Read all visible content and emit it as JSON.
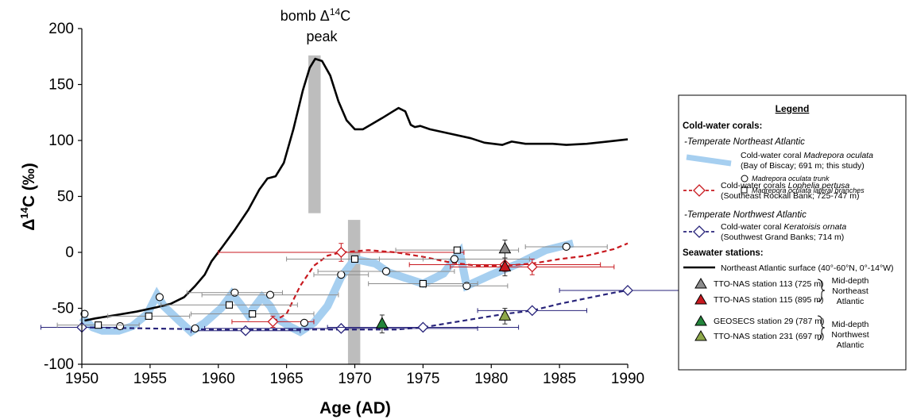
{
  "chart_data": {
    "type": "line",
    "xlabel": "Age (AD)",
    "ylabel": "Δ¹⁴C (‰)",
    "xlim": [
      1950,
      1990
    ],
    "ylim": [
      -100,
      200
    ],
    "xticks": [
      "1950",
      "1955",
      "1960",
      "1965",
      "1970",
      "1975",
      "1980",
      "1985",
      "1990"
    ],
    "yticks": [
      "-100",
      "-50",
      "0",
      "50",
      "100",
      "150",
      "200"
    ],
    "grid": false,
    "legend_placement": "right",
    "annotation": {
      "line1": "bomb Δ",
      "sup": "14",
      "line1_end": "C",
      "line2": "peak"
    },
    "bands": [
      {
        "x0": 1966.6,
        "x1": 1967.5,
        "y0": 35,
        "y1": 176
      },
      {
        "x0": 1969.5,
        "x1": 1970.4,
        "y0": -100,
        "y1": 29
      }
    ],
    "ne_surface": {
      "points": [
        [
          1950.2,
          -61
        ],
        [
          1951,
          -59
        ],
        [
          1952.5,
          -56
        ],
        [
          1954,
          -53
        ],
        [
          1955.5,
          -49
        ],
        [
          1956.5,
          -46
        ],
        [
          1957.5,
          -40
        ],
        [
          1958.3,
          -30
        ],
        [
          1959,
          -20
        ],
        [
          1959.5,
          -8
        ],
        [
          1960.3,
          5
        ],
        [
          1961.2,
          20
        ],
        [
          1962.2,
          38
        ],
        [
          1963,
          56
        ],
        [
          1963.6,
          66
        ],
        [
          1964.2,
          68
        ],
        [
          1964.8,
          80
        ],
        [
          1965.5,
          110
        ],
        [
          1966.2,
          145
        ],
        [
          1966.7,
          165
        ],
        [
          1967.1,
          173
        ],
        [
          1967.6,
          171
        ],
        [
          1968.2,
          158
        ],
        [
          1968.8,
          135
        ],
        [
          1969.4,
          118
        ],
        [
          1970,
          110
        ],
        [
          1970.6,
          110
        ],
        [
          1971.3,
          115
        ],
        [
          1972,
          120
        ],
        [
          1972.8,
          126
        ],
        [
          1973.2,
          129
        ],
        [
          1973.7,
          126
        ],
        [
          1974.1,
          114
        ],
        [
          1974.4,
          112
        ],
        [
          1974.8,
          113
        ],
        [
          1975.5,
          110
        ],
        [
          1977,
          106
        ],
        [
          1978.5,
          102
        ],
        [
          1979.5,
          98
        ],
        [
          1980.8,
          96
        ],
        [
          1981.5,
          99
        ],
        [
          1982.5,
          97
        ],
        [
          1984.5,
          97
        ],
        [
          1985.5,
          96
        ],
        [
          1987,
          97
        ],
        [
          1988.5,
          99
        ],
        [
          1990,
          101
        ]
      ]
    },
    "madrepora_band": {
      "points": [
        [
          1950,
          -58
        ],
        [
          1950.8,
          -67
        ],
        [
          1951.5,
          -70
        ],
        [
          1952.7,
          -70
        ],
        [
          1953.7,
          -66
        ],
        [
          1954.8,
          -55
        ],
        [
          1955.5,
          -38
        ],
        [
          1956,
          -48
        ],
        [
          1957.2,
          -62
        ],
        [
          1958,
          -71
        ],
        [
          1959,
          -63
        ],
        [
          1960.2,
          -50
        ],
        [
          1961,
          -37
        ],
        [
          1961.6,
          -46
        ],
        [
          1962.2,
          -56
        ],
        [
          1963.2,
          -40
        ],
        [
          1963.8,
          -48
        ],
        [
          1964.3,
          -59
        ],
        [
          1965.2,
          -66
        ],
        [
          1966,
          -71
        ],
        [
          1967,
          -63
        ],
        [
          1968,
          -48
        ],
        [
          1969,
          -22
        ],
        [
          1970,
          -6
        ],
        [
          1971.5,
          -10
        ],
        [
          1972.5,
          -18
        ],
        [
          1975,
          -28
        ],
        [
          1976.5,
          -19
        ],
        [
          1977.3,
          -6
        ],
        [
          1977.7,
          0
        ],
        [
          1978.2,
          -30
        ],
        [
          1980,
          -20
        ],
        [
          1982,
          -10
        ],
        [
          1984,
          2
        ],
        [
          1986,
          8
        ]
      ]
    },
    "madrepora_trunk": [
      {
        "x": 1950.2,
        "y": -55,
        "xerr": 0
      },
      {
        "x": 1952.8,
        "y": -66,
        "xerr": 0
      },
      {
        "x": 1955.7,
        "y": -40,
        "xerr": 0
      },
      {
        "x": 1958.3,
        "y": -68,
        "xerr": 0
      },
      {
        "x": 1961.2,
        "y": -36,
        "xerr": 3.5
      },
      {
        "x": 1963.8,
        "y": -38,
        "xerr": 5
      },
      {
        "x": 1966.3,
        "y": -63,
        "xerr": 0
      },
      {
        "x": 1969,
        "y": -20,
        "xerr": 2
      },
      {
        "x": 1972.3,
        "y": -17,
        "xerr": 5
      },
      {
        "x": 1977.3,
        "y": -6,
        "xerr": 5.5
      },
      {
        "x": 1978.2,
        "y": -30,
        "xerr": 3
      },
      {
        "x": 1985.5,
        "y": 5,
        "xerr": 3
      }
    ],
    "madrepora_lateral": [
      {
        "x": 1951.2,
        "y": -65,
        "xerr": 3
      },
      {
        "x": 1954.9,
        "y": -57,
        "xerr": 3
      },
      {
        "x": 1960.8,
        "y": -47,
        "xerr": 5
      },
      {
        "x": 1962.5,
        "y": -55,
        "xerr": 4.5
      },
      {
        "x": 1970,
        "y": -6,
        "xerr": 5
      },
      {
        "x": 1975,
        "y": -28,
        "xerr": 4
      },
      {
        "x": 1977.5,
        "y": 2,
        "xerr": 4.5
      }
    ],
    "lophelia": {
      "points": [
        {
          "x": 1964,
          "y": -62,
          "xerr": 3,
          "yerr": 5
        },
        {
          "x": 1969,
          "y": 0,
          "xerr": 9,
          "yerr": 8
        },
        {
          "x": 1981,
          "y": -11,
          "xerr": 7,
          "yerr": 6
        },
        {
          "x": 1983,
          "y": -13,
          "xerr": 6,
          "yerr": 7
        }
      ],
      "curve": [
        [
          1964,
          -62
        ],
        [
          1965,
          -55
        ],
        [
          1966,
          -30
        ],
        [
          1967,
          -12
        ],
        [
          1968,
          -3
        ],
        [
          1969,
          0
        ],
        [
          1971,
          2
        ],
        [
          1973,
          0
        ],
        [
          1975,
          -4
        ],
        [
          1977,
          -9
        ],
        [
          1979,
          -12
        ],
        [
          1981,
          -12
        ],
        [
          1983,
          -10
        ],
        [
          1985,
          -6
        ],
        [
          1987,
          -3
        ],
        [
          1989,
          3
        ],
        [
          1990,
          8
        ]
      ]
    },
    "keratoisis": {
      "points": [
        {
          "x": 1950,
          "y": -67,
          "xerr": 3
        },
        {
          "x": 1962,
          "y": -70,
          "xerr": 4
        },
        {
          "x": 1969,
          "y": -68,
          "xerr": 10
        },
        {
          "x": 1975,
          "y": -67,
          "xerr": 7
        },
        {
          "x": 1983,
          "y": -52,
          "xerr": 4
        },
        {
          "x": 1990,
          "y": -34,
          "xerr": 5
        }
      ],
      "curve": [
        [
          1950,
          -67
        ],
        [
          1955,
          -68
        ],
        [
          1960,
          -69
        ],
        [
          1965,
          -69
        ],
        [
          1970,
          -69
        ],
        [
          1973,
          -69
        ],
        [
          1975,
          -67
        ],
        [
          1977,
          -63
        ],
        [
          1979,
          -59
        ],
        [
          1981,
          -55
        ],
        [
          1983,
          -52
        ],
        [
          1985,
          -46
        ],
        [
          1987,
          -41
        ],
        [
          1989,
          -36
        ],
        [
          1990,
          -34
        ]
      ]
    },
    "seawater": [
      {
        "label": "TTO-NAS station 113 (725 m)",
        "x": 1981,
        "y": 3,
        "yerr": 8,
        "color": "#8c8c8c"
      },
      {
        "label": "TTO-NAS station 115 (895 m)",
        "x": 1981,
        "y": -13,
        "yerr": 8,
        "color": "#c8191f"
      },
      {
        "label": "GEOSECS station 29 (787 m)",
        "x": 1972,
        "y": -64,
        "yerr": 8,
        "color": "#23853b"
      },
      {
        "label": "TTO-NAS station 231 (697 m)",
        "x": 1981,
        "y": -57,
        "yerr": 7,
        "color": "#8ea84a"
      }
    ]
  },
  "legend": {
    "title": "Legend",
    "cold_water_heading": "Cold-water corals:",
    "ne_atlantic_heading": "-Temperate Northeast Atlantic",
    "madrepora_line1_prefix": "Cold-water coral ",
    "madrepora_line1_species": "Madrepora oculata",
    "madrepora_line2": "(Bay of Biscay; 691 m; this study)",
    "trunk_label": "Madrepora oculata trunk",
    "lateral_label": "Madrepora oculata lateral branches",
    "lophelia_line1_prefix": "Cold-water corals ",
    "lophelia_line1_species": "Lophelia pertusa",
    "lophelia_line2": "(Southeast Rockall Bank; 725-747 m)",
    "nw_atlantic_heading": "-Temperate Northwest Atlantic",
    "keratoisis_line1_prefix": "Cold-water coral ",
    "keratoisis_line1_species": "Keratoisis ornata",
    "keratoisis_line2": "(Southwest Grand Banks; 714 m)",
    "seawater_heading": "Seawater stations:",
    "surface_label": "Northeast Atlantic surface (40°-60°N, 0°-14°W)",
    "tto113": "TTO-NAS station 113 (725 m)",
    "tto115": "TTO-NAS station 115 (895 m)",
    "geosecs29": "GEOSECS station 29 (787 m)",
    "tto231": "TTO-NAS station 231 (697 m)",
    "mid_ne": [
      "Mid-depth",
      "Northeast",
      "Atlantic"
    ],
    "mid_nw": [
      "Mid-depth",
      "Northwest",
      "Atlantic"
    ]
  },
  "colors": {
    "surface_line": "#000000",
    "madrepora_band": "#a6cff0",
    "lophelia": "#c8191f",
    "keratoisis": "#27237a",
    "errorbar_grey": "#8c8c8c",
    "bomb_band": "#bdbdbd"
  }
}
